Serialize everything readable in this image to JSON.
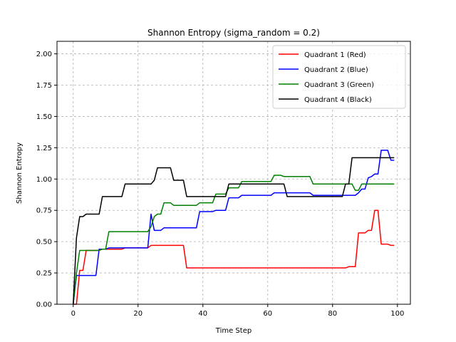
{
  "chart_data": {
    "type": "line",
    "title": "Shannon Entropy (sigma_random = 0.2)",
    "xlabel": "Time Step",
    "ylabel": "Shannon Entropy",
    "xlim": [
      -5,
      104
    ],
    "ylim": [
      0,
      2.1
    ],
    "xticks": [
      0,
      20,
      40,
      60,
      80,
      100
    ],
    "xtick_labels": [
      "0",
      "20",
      "40",
      "60",
      "80",
      "100"
    ],
    "yticks": [
      0,
      0.25,
      0.5,
      0.75,
      1.0,
      1.25,
      1.5,
      1.75,
      2.0
    ],
    "ytick_labels": [
      "0.00",
      "0.25",
      "0.50",
      "0.75",
      "1.00",
      "1.25",
      "1.50",
      "1.75",
      "2.00"
    ],
    "grid": true,
    "legend_position": "top-right",
    "series": [
      {
        "name": "Quadrant 1 (Red)",
        "color": "#ff0000",
        "points": [
          [
            0,
            0
          ],
          [
            1,
            0
          ],
          [
            2,
            0.27
          ],
          [
            3,
            0.27
          ],
          [
            4,
            0.43
          ],
          [
            8,
            0.43
          ],
          [
            9,
            0.44
          ],
          [
            15,
            0.44
          ],
          [
            16,
            0.45
          ],
          [
            23,
            0.45
          ],
          [
            24,
            0.47
          ],
          [
            34,
            0.47
          ],
          [
            35,
            0.29
          ],
          [
            84,
            0.29
          ],
          [
            85,
            0.3
          ],
          [
            87,
            0.3
          ],
          [
            88,
            0.57
          ],
          [
            90,
            0.57
          ],
          [
            91,
            0.59
          ],
          [
            92,
            0.59
          ],
          [
            93,
            0.75
          ],
          [
            94,
            0.75
          ],
          [
            95,
            0.48
          ],
          [
            97,
            0.48
          ],
          [
            98,
            0.47
          ],
          [
            99,
            0.47
          ]
        ]
      },
      {
        "name": "Quadrant 2 (Blue)",
        "color": "#0000ff",
        "points": [
          [
            0,
            0
          ],
          [
            1,
            0.23
          ],
          [
            7,
            0.23
          ],
          [
            8,
            0.44
          ],
          [
            10,
            0.44
          ],
          [
            11,
            0.45
          ],
          [
            23,
            0.45
          ],
          [
            24,
            0.72
          ],
          [
            25,
            0.59
          ],
          [
            27,
            0.59
          ],
          [
            28,
            0.61
          ],
          [
            38,
            0.61
          ],
          [
            39,
            0.74
          ],
          [
            43,
            0.74
          ],
          [
            44,
            0.75
          ],
          [
            47,
            0.75
          ],
          [
            48,
            0.85
          ],
          [
            51,
            0.85
          ],
          [
            52,
            0.87
          ],
          [
            61,
            0.87
          ],
          [
            62,
            0.89
          ],
          [
            73,
            0.89
          ],
          [
            74,
            0.87
          ],
          [
            86,
            0.87
          ],
          [
            87,
            0.87
          ],
          [
            88,
            0.89
          ],
          [
            89,
            0.92
          ],
          [
            90,
            0.92
          ],
          [
            91,
            1.01
          ],
          [
            92,
            1.02
          ],
          [
            93,
            1.04
          ],
          [
            94,
            1.04
          ],
          [
            95,
            1.23
          ],
          [
            97,
            1.23
          ],
          [
            98,
            1.15
          ],
          [
            99,
            1.15
          ]
        ]
      },
      {
        "name": "Quadrant 3 (Green)",
        "color": "#008000",
        "points": [
          [
            0,
            0
          ],
          [
            1,
            0.25
          ],
          [
            2,
            0.43
          ],
          [
            8,
            0.43
          ],
          [
            9,
            0.44
          ],
          [
            10,
            0.44
          ],
          [
            11,
            0.58
          ],
          [
            23,
            0.58
          ],
          [
            24,
            0.62
          ],
          [
            25,
            0.7
          ],
          [
            26,
            0.72
          ],
          [
            27,
            0.72
          ],
          [
            28,
            0.81
          ],
          [
            30,
            0.81
          ],
          [
            31,
            0.79
          ],
          [
            38,
            0.79
          ],
          [
            39,
            0.81
          ],
          [
            43,
            0.81
          ],
          [
            44,
            0.88
          ],
          [
            47,
            0.88
          ],
          [
            48,
            0.93
          ],
          [
            51,
            0.93
          ],
          [
            52,
            0.98
          ],
          [
            61,
            0.98
          ],
          [
            62,
            1.03
          ],
          [
            64,
            1.03
          ],
          [
            65,
            1.02
          ],
          [
            73,
            1.02
          ],
          [
            74,
            0.96
          ],
          [
            86,
            0.96
          ],
          [
            87,
            0.91
          ],
          [
            88,
            0.91
          ],
          [
            89,
            0.96
          ],
          [
            99,
            0.96
          ]
        ]
      },
      {
        "name": "Quadrant 4 (Black)",
        "color": "#000000",
        "points": [
          [
            0,
            0
          ],
          [
            1,
            0.53
          ],
          [
            2,
            0.7
          ],
          [
            3,
            0.7
          ],
          [
            4,
            0.72
          ],
          [
            8,
            0.72
          ],
          [
            9,
            0.86
          ],
          [
            15,
            0.86
          ],
          [
            16,
            0.96
          ],
          [
            24,
            0.96
          ],
          [
            25,
            0.99
          ],
          [
            26,
            1.09
          ],
          [
            30,
            1.09
          ],
          [
            31,
            0.99
          ],
          [
            34,
            0.99
          ],
          [
            35,
            0.86
          ],
          [
            47,
            0.86
          ],
          [
            48,
            0.96
          ],
          [
            65,
            0.96
          ],
          [
            66,
            0.86
          ],
          [
            83,
            0.86
          ],
          [
            84,
            0.96
          ],
          [
            85,
            0.96
          ],
          [
            86,
            1.17
          ],
          [
            99,
            1.17
          ]
        ]
      }
    ]
  }
}
